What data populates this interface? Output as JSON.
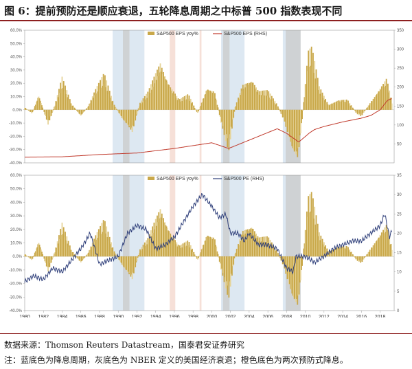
{
  "title": "图 6：提前预防还是顺应衰退，五轮降息周期之中标普 500 指数表现不同",
  "source": "数据来源：Thomson Reuters Datastream，国泰君安证券研究",
  "note": "注：蓝底色为降息周期，灰底色为 NBER 定义的美国经济衰退；橙色底色为两次预防式降息。",
  "colors": {
    "eps_bar": "#c9a84a",
    "eps_bar_light": "#e6d49a",
    "price_line": "#c0392b",
    "pe_line": "#2f3f7a",
    "rate_cut": "#dde8f2",
    "recession": "#cfd2d4",
    "preventive": "#f6e0d8",
    "accent": "#8e1f1f"
  },
  "chart_data": [
    {
      "type": "bar",
      "legend": [
        "S&P500 EPS yoy%",
        "S&P500 EPS (RHS)"
      ],
      "ylim": [
        -40,
        60
      ],
      "y2lim": [
        0,
        350
      ],
      "yticks": [
        "60.0%",
        "50.0%",
        "40.0%",
        "30.0%",
        "20.0%",
        "10.0%",
        "0.0%",
        "-10.0%",
        "-20.0%",
        "-30.0%",
        "-40.0%"
      ],
      "y2ticks": [
        "350",
        "300",
        "250",
        "200",
        "150",
        "100",
        "50"
      ],
      "eps_yoy_anchors": [
        [
          1980,
          2
        ],
        [
          1980.8,
          -3
        ],
        [
          1981.5,
          12
        ],
        [
          1982.5,
          -12
        ],
        [
          1983.2,
          3
        ],
        [
          1984,
          25
        ],
        [
          1985,
          5
        ],
        [
          1986,
          -5
        ],
        [
          1986.8,
          3
        ],
        [
          1987.5,
          15
        ],
        [
          1988.5,
          28
        ],
        [
          1989.5,
          5
        ],
        [
          1990.5,
          -8
        ],
        [
          1991.5,
          -18
        ],
        [
          1992.3,
          5
        ],
        [
          1993.2,
          14
        ],
        [
          1994.5,
          38
        ],
        [
          1995.5,
          20
        ],
        [
          1996.5,
          8
        ],
        [
          1997.5,
          12
        ],
        [
          1998.5,
          -3
        ],
        [
          1999.5,
          18
        ],
        [
          2000.3,
          15
        ],
        [
          2001,
          -10
        ],
        [
          2001.8,
          -32
        ],
        [
          2002.5,
          2
        ],
        [
          2003.3,
          20
        ],
        [
          2004.3,
          25
        ],
        [
          2005,
          15
        ],
        [
          2006,
          15
        ],
        [
          2007,
          4
        ],
        [
          2007.7,
          -8
        ],
        [
          2008.7,
          -35
        ],
        [
          2009.2,
          -40
        ],
        [
          2009.7,
          -5
        ],
        [
          2010.3,
          45
        ],
        [
          2010.7,
          48
        ],
        [
          2011.5,
          18
        ],
        [
          2012.5,
          4
        ],
        [
          2013.5,
          8
        ],
        [
          2014.5,
          8
        ],
        [
          2015.5,
          -3
        ],
        [
          2016,
          -5
        ],
        [
          2016.8,
          4
        ],
        [
          2017.5,
          12
        ],
        [
          2018,
          18
        ],
        [
          2018.7,
          25
        ],
        [
          2019.3,
          5
        ]
      ],
      "eps_level_anchors": [
        [
          1980,
          15
        ],
        [
          1984,
          16
        ],
        [
          1988,
          22
        ],
        [
          1992,
          26
        ],
        [
          1996,
          38
        ],
        [
          2000,
          53
        ],
        [
          2001.8,
          38
        ],
        [
          2004,
          60
        ],
        [
          2007,
          90
        ],
        [
          2008,
          78
        ],
        [
          2009.3,
          55
        ],
        [
          2010.5,
          80
        ],
        [
          2011,
          88
        ],
        [
          2012,
          96
        ],
        [
          2014,
          108
        ],
        [
          2016,
          118
        ],
        [
          2017,
          125
        ],
        [
          2018,
          140
        ],
        [
          2018.8,
          165
        ],
        [
          2019.3,
          170
        ]
      ]
    },
    {
      "type": "bar",
      "legend": [
        "S&P500 EPS yoy%",
        "S&P500 PE (RHS)"
      ],
      "ylim": [
        -40,
        60
      ],
      "y2lim": [
        0,
        35
      ],
      "yticks": [
        "60.0%",
        "50.0%",
        "40.0%",
        "30.0%",
        "20.0%",
        "10.0%",
        "0.0%",
        "-10.0%",
        "-20.0%",
        "-30.0%",
        "-40.0%"
      ],
      "y2ticks": [
        "35",
        "30",
        "25",
        "20",
        "15",
        "10",
        "5",
        "0"
      ],
      "xticks": [
        "1980",
        "1982",
        "1984",
        "1986",
        "1988",
        "1990",
        "1992",
        "1994",
        "1996",
        "1998",
        "2000",
        "2002",
        "2004",
        "2006",
        "2008",
        "2010",
        "2012",
        "2014",
        "2016",
        "2018"
      ],
      "pe_anchors": [
        [
          1980,
          7.5
        ],
        [
          1981,
          9
        ],
        [
          1982,
          8
        ],
        [
          1983,
          11
        ],
        [
          1984,
          10
        ],
        [
          1985,
          13
        ],
        [
          1986,
          16
        ],
        [
          1987,
          20
        ],
        [
          1988,
          12
        ],
        [
          1989,
          13
        ],
        [
          1990,
          14
        ],
        [
          1991,
          20
        ],
        [
          1992,
          22
        ],
        [
          1993,
          21
        ],
        [
          1994,
          16
        ],
        [
          1995,
          17
        ],
        [
          1996,
          19
        ],
        [
          1997,
          23
        ],
        [
          1998,
          27
        ],
        [
          1999,
          30
        ],
        [
          2000,
          27
        ],
        [
          2000.8,
          24
        ],
        [
          2001.5,
          25
        ],
        [
          2002,
          20
        ],
        [
          2002.8,
          20
        ],
        [
          2003.5,
          18
        ],
        [
          2004,
          20
        ],
        [
          2005,
          17
        ],
        [
          2006,
          17
        ],
        [
          2007,
          16
        ],
        [
          2008,
          11
        ],
        [
          2008.7,
          10
        ],
        [
          2009,
          14
        ],
        [
          2010,
          14
        ],
        [
          2011,
          12.5
        ],
        [
          2012,
          14
        ],
        [
          2013,
          16
        ],
        [
          2014,
          17
        ],
        [
          2015,
          18
        ],
        [
          2016,
          18
        ],
        [
          2017,
          20
        ],
        [
          2018,
          22
        ],
        [
          2018.5,
          25
        ],
        [
          2019,
          19
        ],
        [
          2019.3,
          21
        ]
      ]
    }
  ],
  "shading": {
    "rate_cut": [
      [
        1989.4,
        1992.8
      ],
      [
        2001,
        2003.5
      ],
      [
        2007.6,
        2008.9
      ]
    ],
    "recession": [
      [
        1990.5,
        1991.2
      ],
      [
        2001.2,
        2001.9
      ],
      [
        2007.9,
        2009.5
      ]
    ],
    "preventive": [
      [
        1995.5,
        1996.1
      ],
      [
        1998.7,
        1998.9
      ]
    ]
  }
}
